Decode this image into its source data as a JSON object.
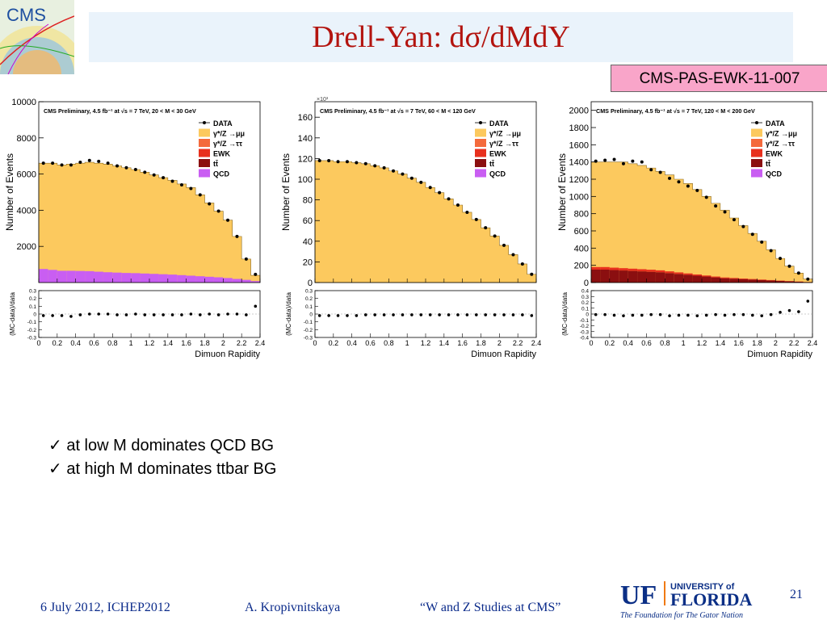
{
  "slide": {
    "title": "Drell-Yan: dσ/dMdY",
    "reference": "CMS-PAS-EWK-11-007",
    "logo_text": "CMS",
    "page_number": "21",
    "bullets": [
      "✓ at low M dominates QCD BG",
      "✓ at high M dominates ttbar BG"
    ],
    "footer": {
      "date": "6 July 2012, ICHEP2012",
      "author": "A. Kropivnitskaya",
      "talk": "“W and Z Studies at CMS”"
    },
    "university": {
      "uf": "UF",
      "line1": "UNIVERSITY of",
      "line2": "FLORIDA",
      "tagline": "The Foundation for The Gator Nation"
    },
    "colors": {
      "title": "#b3140f",
      "dy_mumu": "#fcc95e",
      "dy_tautau": "#f46a3c",
      "ewk": "#e8301d",
      "ttbar": "#8b0f10",
      "qcd": "#c95ef2",
      "footer": "#0a2a8a",
      "ref_box": "#f9a5c9"
    }
  },
  "chart_data": [
    {
      "type": "bar",
      "header": "CMS Preliminary, 4.5 fb⁻¹ at √s = 7 TeV, 20 < M < 30 GeV",
      "ylabel": "Number of Events",
      "xlabel": "Dimuon Rapidity",
      "ratio_ylabel": "(MC-data)/data",
      "legend": [
        "DATA",
        "γ*/Z →μμ",
        "γ*/Z →ττ",
        "EWK",
        "tt̄",
        "QCD"
      ],
      "ylim": [
        0,
        10000
      ],
      "yticks": [
        2000,
        4000,
        6000,
        8000,
        10000
      ],
      "ytick_labels": [
        "2000",
        "4000",
        "6000",
        "8000",
        "10000"
      ],
      "ratio_ylim": [
        -0.3,
        0.3
      ],
      "ratio_yticks": [
        -0.3,
        -0.2,
        -0.1,
        0,
        0.1,
        0.2,
        0.3
      ],
      "ratio_ytick_labels": [
        "-0.3",
        "-0.2",
        "-0.1",
        "0",
        "0.1",
        "0.2",
        "0.3"
      ],
      "xlim": [
        0,
        2.4
      ],
      "xticks": [
        0,
        0.2,
        0.4,
        0.6,
        0.8,
        1,
        1.2,
        1.4,
        1.6,
        1.8,
        2,
        2.2,
        2.4
      ],
      "xtick_labels": [
        "0",
        "0.2",
        "0.4",
        "0.6",
        "0.8",
        "1",
        "1.2",
        "1.4",
        "1.6",
        "1.8",
        "2",
        "2.2",
        "2.4"
      ],
      "bin_edges": [
        0,
        0.1,
        0.2,
        0.3,
        0.4,
        0.5,
        0.6,
        0.7,
        0.8,
        0.9,
        1.0,
        1.1,
        1.2,
        1.3,
        1.4,
        1.5,
        1.6,
        1.7,
        1.8,
        1.9,
        2.0,
        2.1,
        2.2,
        2.3,
        2.4
      ],
      "mc_total": [
        6600,
        6600,
        6500,
        6550,
        6600,
        6650,
        6600,
        6550,
        6450,
        6350,
        6250,
        6100,
        5950,
        5800,
        5650,
        5450,
        5250,
        4850,
        4400,
        3950,
        3450,
        2550,
        1300,
        400
      ],
      "backgrounds": {
        "QCD": [
          750,
          700,
          650,
          650,
          640,
          630,
          600,
          570,
          550,
          530,
          520,
          500,
          480,
          460,
          440,
          410,
          380,
          350,
          320,
          290,
          250,
          200,
          150,
          80
        ]
      },
      "data_points": [
        6600,
        6600,
        6500,
        6500,
        6650,
        6750,
        6700,
        6600,
        6450,
        6350,
        6250,
        6100,
        5950,
        5800,
        5600,
        5400,
        5200,
        4850,
        4350,
        3950,
        3450,
        2550,
        1300,
        450
      ],
      "ratio_points": [
        -0.02,
        -0.02,
        -0.02,
        -0.03,
        -0.01,
        0.0,
        0.0,
        0.0,
        -0.01,
        -0.01,
        0.0,
        -0.01,
        -0.01,
        -0.01,
        -0.01,
        -0.01,
        0.0,
        -0.01,
        0.0,
        -0.01,
        0.0,
        0.0,
        -0.01,
        0.1
      ]
    },
    {
      "type": "bar",
      "header": "CMS Preliminary, 4.5 fb⁻¹ at √s = 7 TeV, 60 < M < 120 GeV",
      "ylabel": "Number of Events",
      "xlabel": "Dimuon Rapidity",
      "ratio_ylabel": "(MC-data)/data",
      "legend": [
        "DATA",
        "γ*/Z →μμ",
        "γ*/Z →ττ",
        "EWK",
        "tt̄",
        "QCD"
      ],
      "y_multiplier_label": "×10³",
      "ylim": [
        0,
        175
      ],
      "yticks": [
        0,
        20,
        40,
        60,
        80,
        100,
        120,
        140,
        160
      ],
      "ytick_labels": [
        "0",
        "20",
        "40",
        "60",
        "80",
        "100",
        "120",
        "140",
        "160"
      ],
      "ratio_ylim": [
        -0.3,
        0.3
      ],
      "ratio_yticks": [
        -0.3,
        -0.2,
        -0.1,
        0,
        0.1,
        0.2,
        0.3
      ],
      "ratio_ytick_labels": [
        "-0.3",
        "-0.2",
        "-0.1",
        "0",
        "0.1",
        "0.2",
        "0.3"
      ],
      "xlim": [
        0,
        2.4
      ],
      "xticks": [
        0,
        0.2,
        0.4,
        0.6,
        0.8,
        1,
        1.2,
        1.4,
        1.6,
        1.8,
        2,
        2.2,
        2.4
      ],
      "xtick_labels": [
        "0",
        "0.2",
        "0.4",
        "0.6",
        "0.8",
        "1",
        "1.2",
        "1.4",
        "1.6",
        "1.8",
        "2",
        "2.2",
        "2.4"
      ],
      "bin_edges": [
        0,
        0.1,
        0.2,
        0.3,
        0.4,
        0.5,
        0.6,
        0.7,
        0.8,
        0.9,
        1.0,
        1.1,
        1.2,
        1.3,
        1.4,
        1.5,
        1.6,
        1.7,
        1.8,
        1.9,
        2.0,
        2.1,
        2.2,
        2.3,
        2.4
      ],
      "mc_total": [
        118,
        118,
        117,
        117,
        116,
        115,
        113,
        111,
        108,
        105,
        101,
        97,
        92,
        87,
        81,
        75,
        68,
        61,
        53,
        45,
        36,
        27,
        18,
        8
      ],
      "backgrounds": {},
      "data_points": [
        118,
        118,
        117,
        117,
        116,
        115,
        113,
        111,
        108,
        105,
        101,
        97,
        92,
        87,
        81,
        75,
        68,
        61,
        53,
        45,
        36,
        27,
        18,
        8
      ],
      "ratio_points": [
        -0.02,
        -0.02,
        -0.02,
        -0.02,
        -0.02,
        -0.01,
        -0.01,
        -0.01,
        -0.01,
        -0.01,
        -0.01,
        -0.01,
        -0.01,
        -0.01,
        -0.01,
        -0.01,
        -0.01,
        -0.01,
        -0.01,
        -0.01,
        -0.01,
        -0.01,
        -0.01,
        -0.02
      ]
    },
    {
      "type": "bar",
      "header": "CMS Preliminary, 4.5 fb⁻¹ at √s = 7 TeV, 120 < M < 200 GeV",
      "ylabel": "Number of Events",
      "xlabel": "Dimuon Rapidity",
      "ratio_ylabel": "(MC-data)/data",
      "legend": [
        "DATA",
        "γ*/Z →μμ",
        "γ*/Z →ττ",
        "EWK",
        "tt̄",
        "QCD"
      ],
      "ylim": [
        0,
        2100
      ],
      "yticks": [
        0,
        200,
        400,
        600,
        800,
        1000,
        1200,
        1400,
        1600,
        1800,
        2000
      ],
      "ytick_labels": [
        "0",
        "200",
        "400",
        "600",
        "800",
        "1000",
        "1200",
        "1400",
        "1600",
        "1800",
        "2000"
      ],
      "ratio_ylim": [
        -0.4,
        0.4
      ],
      "ratio_yticks": [
        -0.4,
        -0.3,
        -0.2,
        -0.1,
        0,
        0.1,
        0.2,
        0.3,
        0.4
      ],
      "ratio_ytick_labels": [
        "-0.4",
        "-0.3",
        "-0.2",
        "-0.1",
        "0",
        "0.1",
        "0.2",
        "0.3",
        "0.4"
      ],
      "xlim": [
        0,
        2.4
      ],
      "xticks": [
        0,
        0.2,
        0.4,
        0.6,
        0.8,
        1,
        1.2,
        1.4,
        1.6,
        1.8,
        2,
        2.2,
        2.4
      ],
      "xtick_labels": [
        "0",
        "0.2",
        "0.4",
        "0.6",
        "0.8",
        "1",
        "1.2",
        "1.4",
        "1.6",
        "1.8",
        "2",
        "2.2",
        "2.4"
      ],
      "bin_edges": [
        0,
        0.1,
        0.2,
        0.3,
        0.4,
        0.5,
        0.6,
        0.7,
        0.8,
        0.9,
        1.0,
        1.1,
        1.2,
        1.3,
        1.4,
        1.5,
        1.6,
        1.7,
        1.8,
        1.9,
        2.0,
        2.1,
        2.2,
        2.3,
        2.4
      ],
      "mc_total": [
        1400,
        1400,
        1400,
        1400,
        1380,
        1360,
        1330,
        1290,
        1250,
        1200,
        1150,
        1080,
        1000,
        920,
        840,
        750,
        660,
        570,
        480,
        380,
        280,
        190,
        110,
        40
      ],
      "backgrounds": {
        "ttbar": [
          150,
          150,
          145,
          140,
          135,
          130,
          125,
          120,
          110,
          100,
          90,
          80,
          70,
          60,
          50,
          45,
          40,
          35,
          30,
          25,
          20,
          15,
          10,
          5
        ],
        "EWK": [
          30,
          30,
          28,
          27,
          26,
          25,
          24,
          22,
          20,
          18,
          16,
          14,
          12,
          10,
          9,
          8,
          7,
          6,
          5,
          4,
          3,
          2,
          2,
          1
        ]
      },
      "data_points": [
        1410,
        1420,
        1430,
        1380,
        1410,
        1400,
        1310,
        1280,
        1210,
        1170,
        1120,
        1070,
        990,
        890,
        820,
        730,
        650,
        560,
        470,
        370,
        280,
        190,
        110,
        40
      ],
      "ratio_points": [
        -0.01,
        -0.01,
        -0.02,
        -0.03,
        -0.02,
        -0.02,
        -0.01,
        -0.01,
        -0.03,
        -0.02,
        -0.02,
        -0.03,
        -0.02,
        -0.01,
        -0.02,
        -0.01,
        -0.01,
        -0.02,
        -0.03,
        -0.01,
        0.03,
        0.06,
        0.04,
        0.22
      ]
    }
  ]
}
